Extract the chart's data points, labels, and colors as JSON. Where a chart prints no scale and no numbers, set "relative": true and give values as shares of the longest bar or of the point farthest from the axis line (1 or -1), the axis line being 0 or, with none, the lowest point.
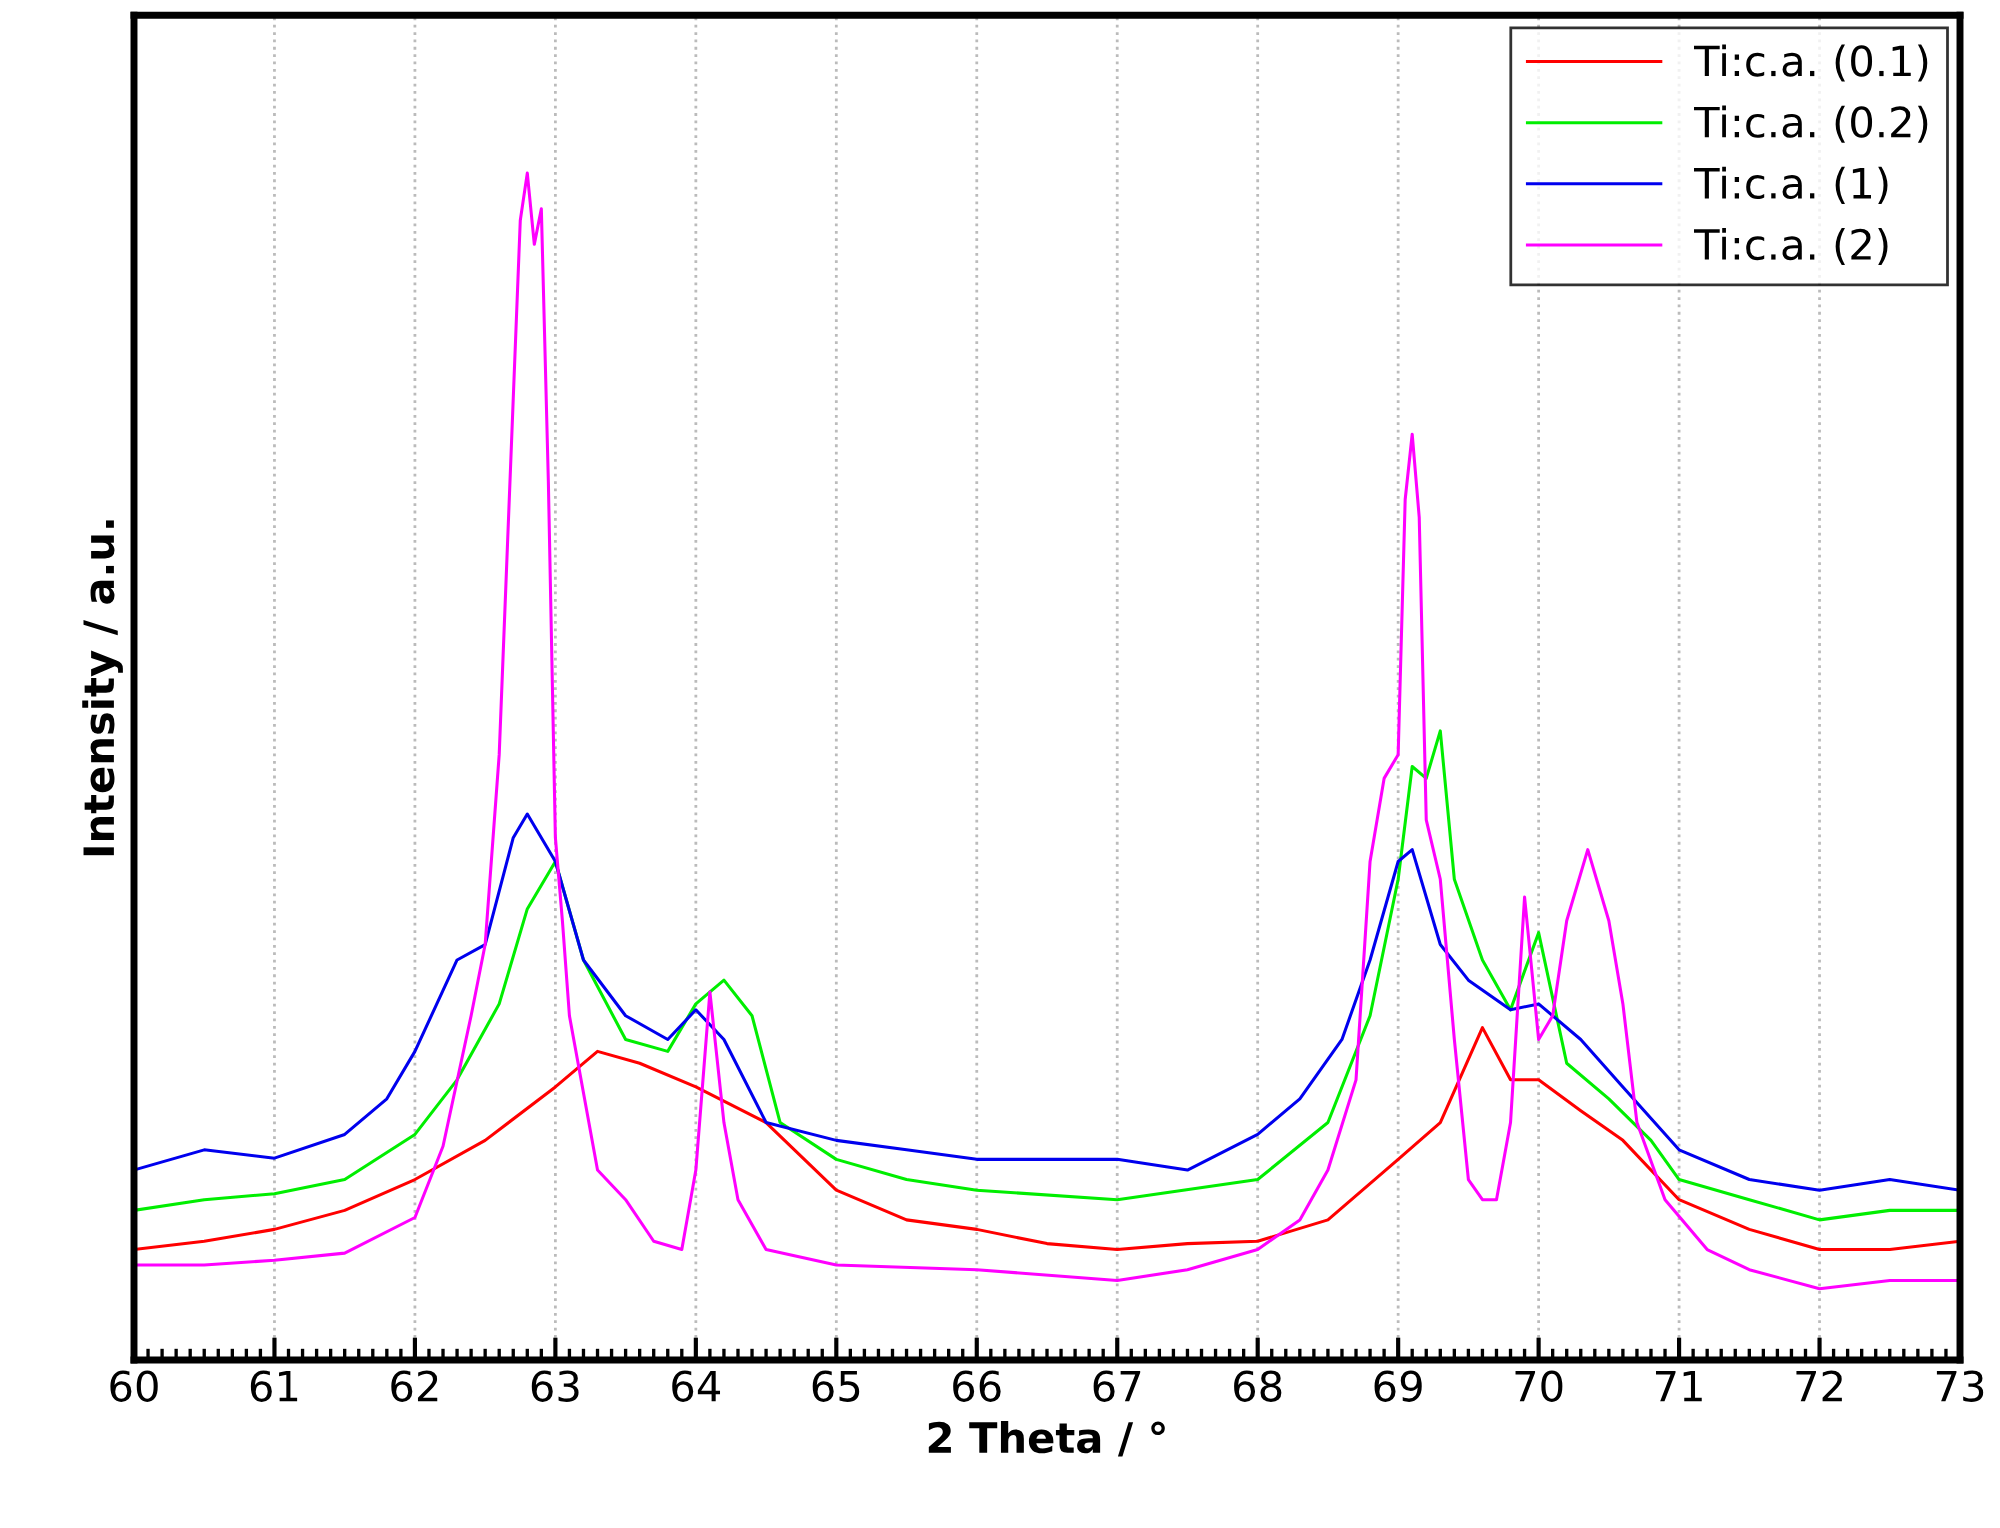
{
  "chart_data": {
    "type": "line",
    "xlabel": "2 Theta / °",
    "ylabel": "Intensity / a.u.",
    "relative": true,
    "xlim": [
      60,
      73
    ],
    "xticks": [
      60,
      61,
      62,
      63,
      64,
      65,
      66,
      67,
      68,
      69,
      70,
      71,
      72,
      73
    ],
    "grid": "x",
    "legend": "top right",
    "tick_labels": "x",
    "line_style": "solid",
    "marker": "none",
    "series": [
      {
        "name": "Ti:c.a. (0.1)",
        "color": "#ff0000",
        "x": [
          60,
          60.5,
          61,
          61.5,
          62,
          62.5,
          63,
          63.3,
          63.6,
          64,
          64.5,
          65,
          65.5,
          66,
          66.5,
          67,
          67.5,
          68,
          68.5,
          69,
          69.3,
          69.6,
          69.8,
          70,
          70.3,
          70.6,
          71,
          71.5,
          72,
          72.5,
          73
        ],
        "values": [
          0.093,
          0.1,
          0.11,
          0.126,
          0.152,
          0.185,
          0.23,
          0.26,
          0.25,
          0.23,
          0.2,
          0.143,
          0.118,
          0.11,
          0.098,
          0.093,
          0.098,
          0.1,
          0.118,
          0.169,
          0.2,
          0.28,
          0.236,
          0.236,
          0.21,
          0.185,
          0.135,
          0.11,
          0.093,
          0.093,
          0.1
        ]
      },
      {
        "name": "Ti:c.a. (0.2)",
        "color": "#00ee00",
        "x": [
          60,
          60.5,
          61,
          61.5,
          62,
          62.3,
          62.6,
          62.8,
          63,
          63.2,
          63.5,
          63.8,
          64,
          64.2,
          64.4,
          64.6,
          65,
          65.5,
          66,
          67,
          68,
          68.5,
          68.8,
          69,
          69.1,
          69.2,
          69.3,
          69.4,
          69.6,
          69.8,
          70,
          70.2,
          70.5,
          70.8,
          71,
          71.5,
          72,
          72.5,
          73
        ],
        "values": [
          0.126,
          0.135,
          0.14,
          0.152,
          0.19,
          0.236,
          0.3,
          0.38,
          0.42,
          0.337,
          0.27,
          0.26,
          0.3,
          0.32,
          0.29,
          0.2,
          0.169,
          0.152,
          0.143,
          0.135,
          0.152,
          0.2,
          0.29,
          0.405,
          0.5,
          0.49,
          0.53,
          0.405,
          0.337,
          0.295,
          0.36,
          0.25,
          0.22,
          0.185,
          0.152,
          0.135,
          0.118,
          0.126,
          0.126
        ]
      },
      {
        "name": "Ti:c.a. (1)",
        "color": "#0000ee",
        "x": [
          60,
          60.5,
          61,
          61.5,
          61.8,
          62,
          62.3,
          62.5,
          62.7,
          62.8,
          63,
          63.2,
          63.5,
          63.8,
          64,
          64.2,
          64.5,
          65,
          65.5,
          66,
          67,
          67.5,
          68,
          68.3,
          68.6,
          68.8,
          69,
          69.1,
          69.3,
          69.5,
          69.8,
          70,
          70.3,
          70.6,
          71,
          71.5,
          72,
          72.5,
          73
        ],
        "values": [
          0.16,
          0.177,
          0.17,
          0.19,
          0.22,
          0.26,
          0.337,
          0.35,
          0.44,
          0.46,
          0.42,
          0.337,
          0.29,
          0.27,
          0.295,
          0.27,
          0.2,
          0.185,
          0.177,
          0.169,
          0.169,
          0.16,
          0.19,
          0.22,
          0.27,
          0.337,
          0.42,
          0.43,
          0.35,
          0.32,
          0.295,
          0.3,
          0.27,
          0.23,
          0.177,
          0.152,
          0.143,
          0.152,
          0.143
        ]
      },
      {
        "name": "Ti:c.a. (2)",
        "color": "#ff00ff",
        "x": [
          60,
          60.5,
          61,
          61.5,
          62,
          62.2,
          62.4,
          62.5,
          62.6,
          62.7,
          62.75,
          62.8,
          62.85,
          62.9,
          62.95,
          63,
          63.05,
          63.1,
          63.3,
          63.5,
          63.7,
          63.9,
          64,
          64.1,
          64.2,
          64.3,
          64.5,
          65,
          66,
          67,
          67.5,
          68,
          68.3,
          68.5,
          68.7,
          68.8,
          68.9,
          69,
          69.05,
          69.1,
          69.15,
          69.2,
          69.3,
          69.4,
          69.5,
          69.6,
          69.7,
          69.8,
          69.9,
          70,
          70.1,
          70.2,
          70.35,
          70.5,
          70.6,
          70.7,
          70.9,
          71.2,
          71.5,
          72,
          72.5,
          73
        ],
        "values": [
          0.08,
          0.08,
          0.084,
          0.09,
          0.12,
          0.18,
          0.29,
          0.35,
          0.51,
          0.81,
          0.96,
          1,
          0.94,
          0.97,
          0.74,
          0.44,
          0.37,
          0.29,
          0.16,
          0.135,
          0.1,
          0.093,
          0.16,
          0.31,
          0.2,
          0.135,
          0.093,
          0.08,
          0.076,
          0.067,
          0.076,
          0.093,
          0.118,
          0.16,
          0.236,
          0.42,
          0.49,
          0.51,
          0.725,
          0.78,
          0.71,
          0.455,
          0.405,
          0.27,
          0.152,
          0.135,
          0.135,
          0.2,
          0.39,
          0.27,
          0.29,
          0.37,
          0.43,
          0.37,
          0.3,
          0.2,
          0.135,
          0.093,
          0.076,
          0.06,
          0.067,
          0.067
        ]
      }
    ]
  }
}
